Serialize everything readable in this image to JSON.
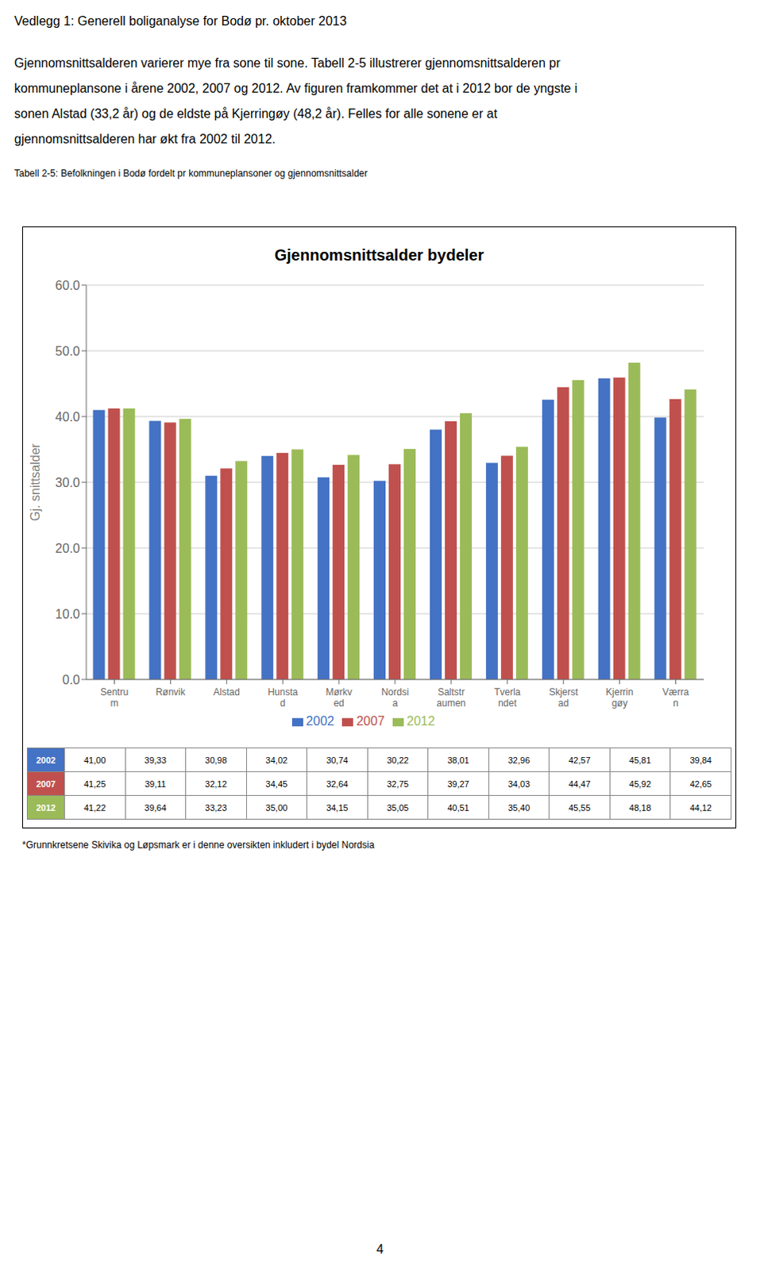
{
  "page_title": "Vedlegg 1: Generell boliganalyse for Bodø pr. oktober 2013",
  "paragraph": [
    "Gjennomsnittsalderen varierer mye fra sone til sone. Tabell 2-5 illustrerer gjennomsnittsalderen pr",
    "kommuneplansone i årene 2002, 2007 og 2012. Av figuren framkommer det at i 2012 bor de yngste i",
    "sonen Alstad (33,2 år) og de eldste på Kjerringøy (48,2 år). Felles for alle sonene er at",
    "gjennomsnittsalderen har økt fra 2002 til 2012."
  ],
  "caption": "Tabell 2-5: Befolkningen i Bodø fordelt pr kommuneplansoner og gjennomsnittsalder",
  "footnote": "*Grunnkretsene Skivika og Løpsmark er i denne oversikten inkludert i bydel Nordsia",
  "page_number": "4",
  "chart_data": {
    "type": "bar",
    "title": "Gjennomsnittsalder bydeler",
    "ylabel": "Gj. snittsalder",
    "categories": [
      "Sentru\nm",
      "Rønvik",
      "Alstad",
      "Hunsta\nd",
      "Mørkv\ned",
      "Nordsi\na",
      "Saltstr\naumen",
      "Tverla\nndet",
      "Skjerst\nad",
      "Kjerrin\ngøy",
      "Værra\nn"
    ],
    "series": [
      {
        "name": "2002",
        "color": "#4472C4",
        "values": [
          41.0,
          39.33,
          30.98,
          34.02,
          30.74,
          30.22,
          38.01,
          32.96,
          42.57,
          45.81,
          39.84
        ],
        "value_labels": [
          "41,00",
          "39,33",
          "30,98",
          "34,02",
          "30,74",
          "30,22",
          "38,01",
          "32,96",
          "42,57",
          "45,81",
          "39,84"
        ]
      },
      {
        "name": "2007",
        "color": "#C0504D",
        "values": [
          41.25,
          39.11,
          32.12,
          34.45,
          32.64,
          32.75,
          39.27,
          34.03,
          44.47,
          45.92,
          42.65
        ],
        "value_labels": [
          "41,25",
          "39,11",
          "32,12",
          "34,45",
          "32,64",
          "32,75",
          "39,27",
          "34,03",
          "44,47",
          "45,92",
          "42,65"
        ]
      },
      {
        "name": "2012",
        "color": "#9BBB59",
        "values": [
          41.22,
          39.64,
          33.23,
          35.0,
          34.15,
          35.05,
          40.51,
          35.4,
          45.55,
          48.18,
          44.12
        ],
        "value_labels": [
          "41,22",
          "39,64",
          "33,23",
          "35,00",
          "34,15",
          "35,05",
          "40,51",
          "35,40",
          "45,55",
          "48,18",
          "44,12"
        ]
      }
    ],
    "ylim": [
      0,
      60
    ],
    "yticks": [
      {
        "value": 0,
        "label": "0.0"
      },
      {
        "value": 10,
        "label": "10.0"
      },
      {
        "value": 20,
        "label": "20.0"
      },
      {
        "value": 30,
        "label": "30.0"
      },
      {
        "value": 40,
        "label": "40.0"
      },
      {
        "value": 50,
        "label": "50.0"
      },
      {
        "value": 60,
        "label": "60.0"
      }
    ],
    "grid": true,
    "legend": "bottom"
  }
}
